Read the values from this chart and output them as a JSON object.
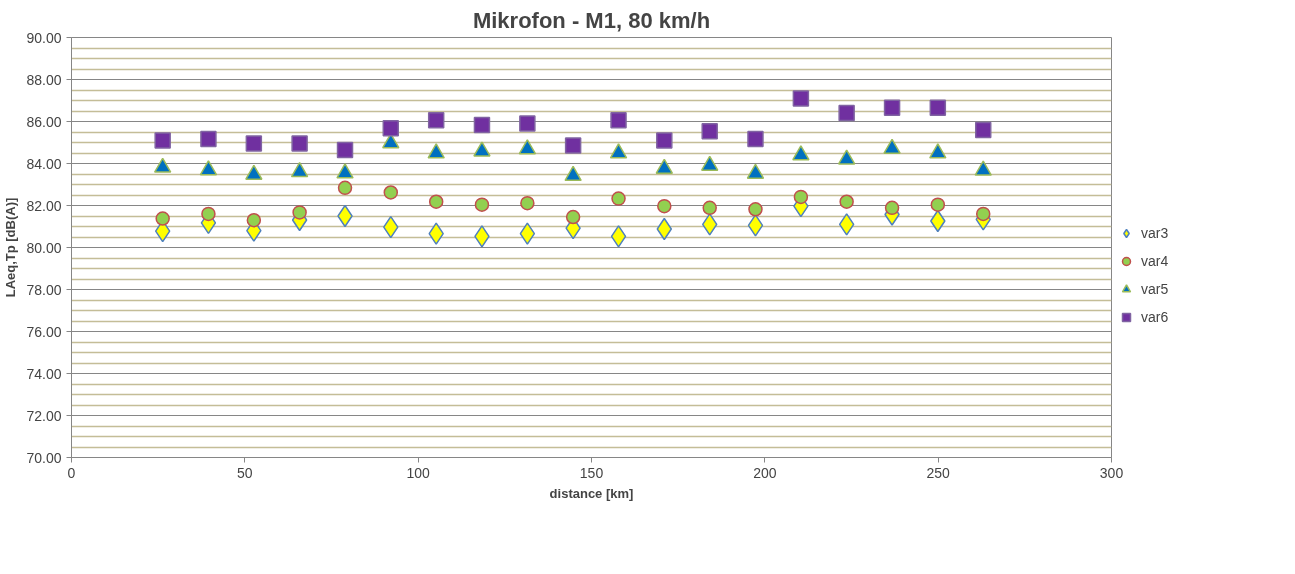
{
  "chart_data": {
    "type": "scatter",
    "title": "Mikrofon - M1, 80 km/h",
    "xlabel": "distance [km]",
    "ylabel": "LAeq,Tp [dB(A)]",
    "x": [
      26.3,
      39.5,
      52.6,
      65.8,
      78.9,
      92.1,
      105.2,
      118.4,
      131.5,
      144.7,
      157.8,
      171.0,
      184.1,
      197.3,
      210.4,
      223.6,
      236.7,
      249.9,
      263.0
    ],
    "series": [
      {
        "name": "var3",
        "color": "#ffff00",
        "marker": "diamond",
        "values": [
          80.78,
          81.17,
          80.8,
          81.31,
          81.5,
          80.97,
          80.66,
          80.53,
          80.66,
          80.92,
          80.53,
          80.88,
          81.1,
          81.05,
          81.97,
          81.1,
          81.57,
          81.26,
          81.34
        ]
      },
      {
        "name": "var4",
        "color": "#92d050",
        "marker": "circle",
        "values": [
          81.38,
          81.6,
          81.3,
          81.67,
          82.84,
          82.62,
          82.18,
          82.04,
          82.11,
          81.45,
          82.33,
          81.97,
          81.89,
          81.82,
          82.41,
          82.18,
          81.89,
          82.04,
          81.6
        ]
      },
      {
        "name": "var5",
        "color": "#0070c0",
        "marker": "triangle",
        "values": [
          83.81,
          83.69,
          83.47,
          83.6,
          83.54,
          84.97,
          84.49,
          84.58,
          84.69,
          83.42,
          84.49,
          83.76,
          83.9,
          83.52,
          84.4,
          84.2,
          84.71,
          84.49,
          83.67
        ]
      },
      {
        "name": "var6",
        "color": "#7030a0",
        "marker": "square",
        "values": [
          85.09,
          85.17,
          84.95,
          84.95,
          84.64,
          85.68,
          86.06,
          85.83,
          85.9,
          84.86,
          86.06,
          85.09,
          85.54,
          85.17,
          87.1,
          86.41,
          86.65,
          86.65,
          85.6
        ]
      }
    ],
    "xlim": [
      0,
      300
    ],
    "xticks": [
      0,
      50,
      100,
      150,
      200,
      250,
      300
    ],
    "ylim": [
      70,
      90
    ],
    "yticks": [
      {
        "value": 70,
        "label": "70.00"
      },
      {
        "value": 70.5,
        "label": null
      },
      {
        "value": 71,
        "label": null
      },
      {
        "value": 71.5,
        "label": null
      },
      {
        "value": 72,
        "label": "72.00"
      },
      {
        "value": 72.5,
        "label": null
      },
      {
        "value": 73,
        "label": null
      },
      {
        "value": 73.5,
        "label": null
      },
      {
        "value": 74,
        "label": "74.00"
      },
      {
        "value": 74.5,
        "label": null
      },
      {
        "value": 75,
        "label": null
      },
      {
        "value": 75.5,
        "label": null
      },
      {
        "value": 76,
        "label": "76.00"
      },
      {
        "value": 76.5,
        "label": null
      },
      {
        "value": 77,
        "label": null
      },
      {
        "value": 77.5,
        "label": null
      },
      {
        "value": 78,
        "label": "78.00"
      },
      {
        "value": 78.5,
        "label": null
      },
      {
        "value": 79,
        "label": null
      },
      {
        "value": 79.5,
        "label": null
      },
      {
        "value": 80,
        "label": "80.00"
      },
      {
        "value": 80.5,
        "label": null
      },
      {
        "value": 81,
        "label": null
      },
      {
        "value": 81.5,
        "label": null
      },
      {
        "value": 82,
        "label": "82.00"
      },
      {
        "value": 82.5,
        "label": null
      },
      {
        "value": 83,
        "label": null
      },
      {
        "value": 83.5,
        "label": null
      },
      {
        "value": 84,
        "label": "84.00"
      },
      {
        "value": 84.5,
        "label": null
      },
      {
        "value": 85,
        "label": null
      },
      {
        "value": 85.5,
        "label": null
      },
      {
        "value": 86,
        "label": "86.00"
      },
      {
        "value": 86.5,
        "label": null
      },
      {
        "value": 87,
        "label": null
      },
      {
        "value": 87.5,
        "label": null
      },
      {
        "value": 88,
        "label": "88.00"
      },
      {
        "value": 88.5,
        "label": null
      },
      {
        "value": 89,
        "label": null
      },
      {
        "value": 89.5,
        "label": null
      },
      {
        "value": 90,
        "label": "90.00"
      }
    ],
    "grid": "y",
    "legend": "right"
  }
}
